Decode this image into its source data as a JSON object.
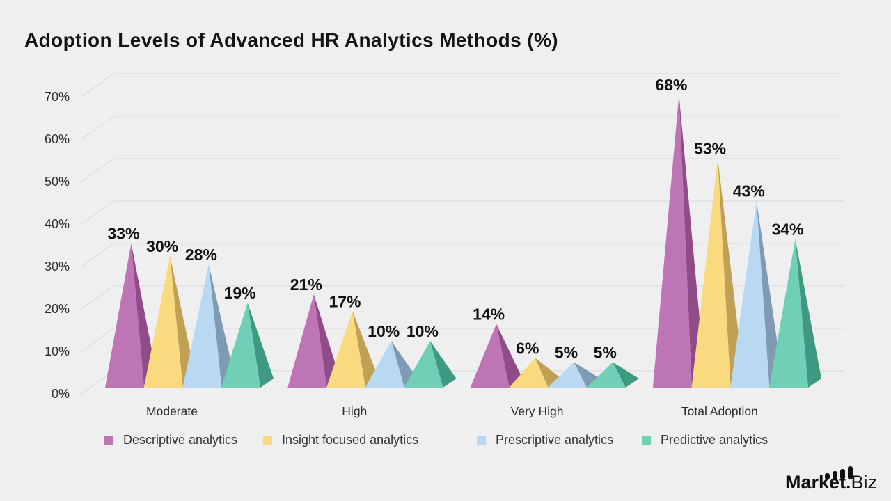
{
  "title": "Adoption Levels of Advanced HR Analytics Methods (%)",
  "chart_data": {
    "type": "bar",
    "variant": "3d-pyramid",
    "title": "Adoption Levels of Advanced HR Analytics Methods (%)",
    "categories": [
      "Moderate",
      "High",
      "Very High",
      "Total Adoption"
    ],
    "series": [
      {
        "name": "Descriptive analytics",
        "color_front": "#bd75b5",
        "color_side": "#8f4c89",
        "values": [
          33,
          21,
          14,
          68
        ]
      },
      {
        "name": "Insight focused analytics",
        "color_front": "#fada7e",
        "color_side": "#bfa054",
        "values": [
          30,
          17,
          6,
          53
        ]
      },
      {
        "name": "Prescriptive analytics",
        "color_front": "#b8d9f1",
        "color_side": "#7f9ab3",
        "values": [
          28,
          10,
          5,
          43
        ]
      },
      {
        "name": "Predictive analytics",
        "color_front": "#70cfb4",
        "color_side": "#3f9882",
        "values": [
          19,
          10,
          5,
          34
        ]
      }
    ],
    "value_suffix": "%",
    "y_ticks": [
      {
        "v": 0,
        "label": "0%"
      },
      {
        "v": 10,
        "label": "10%"
      },
      {
        "v": 20,
        "label": "20%"
      },
      {
        "v": 30,
        "label": "30%"
      },
      {
        "v": 40,
        "label": "40%"
      },
      {
        "v": 50,
        "label": "50%"
      },
      {
        "v": 60,
        "label": "60%"
      },
      {
        "v": 70,
        "label": "70%"
      }
    ],
    "ylim": [
      0,
      70
    ],
    "grid": true,
    "legend_position": "bottom",
    "colors": {
      "background": "#f0efef",
      "gridline": "#d9d9d9",
      "text_dark": "#121212",
      "text_muted": "#2d2d2d"
    }
  },
  "branding": {
    "logo_bold": "Market.",
    "logo_light": "Biz"
  }
}
